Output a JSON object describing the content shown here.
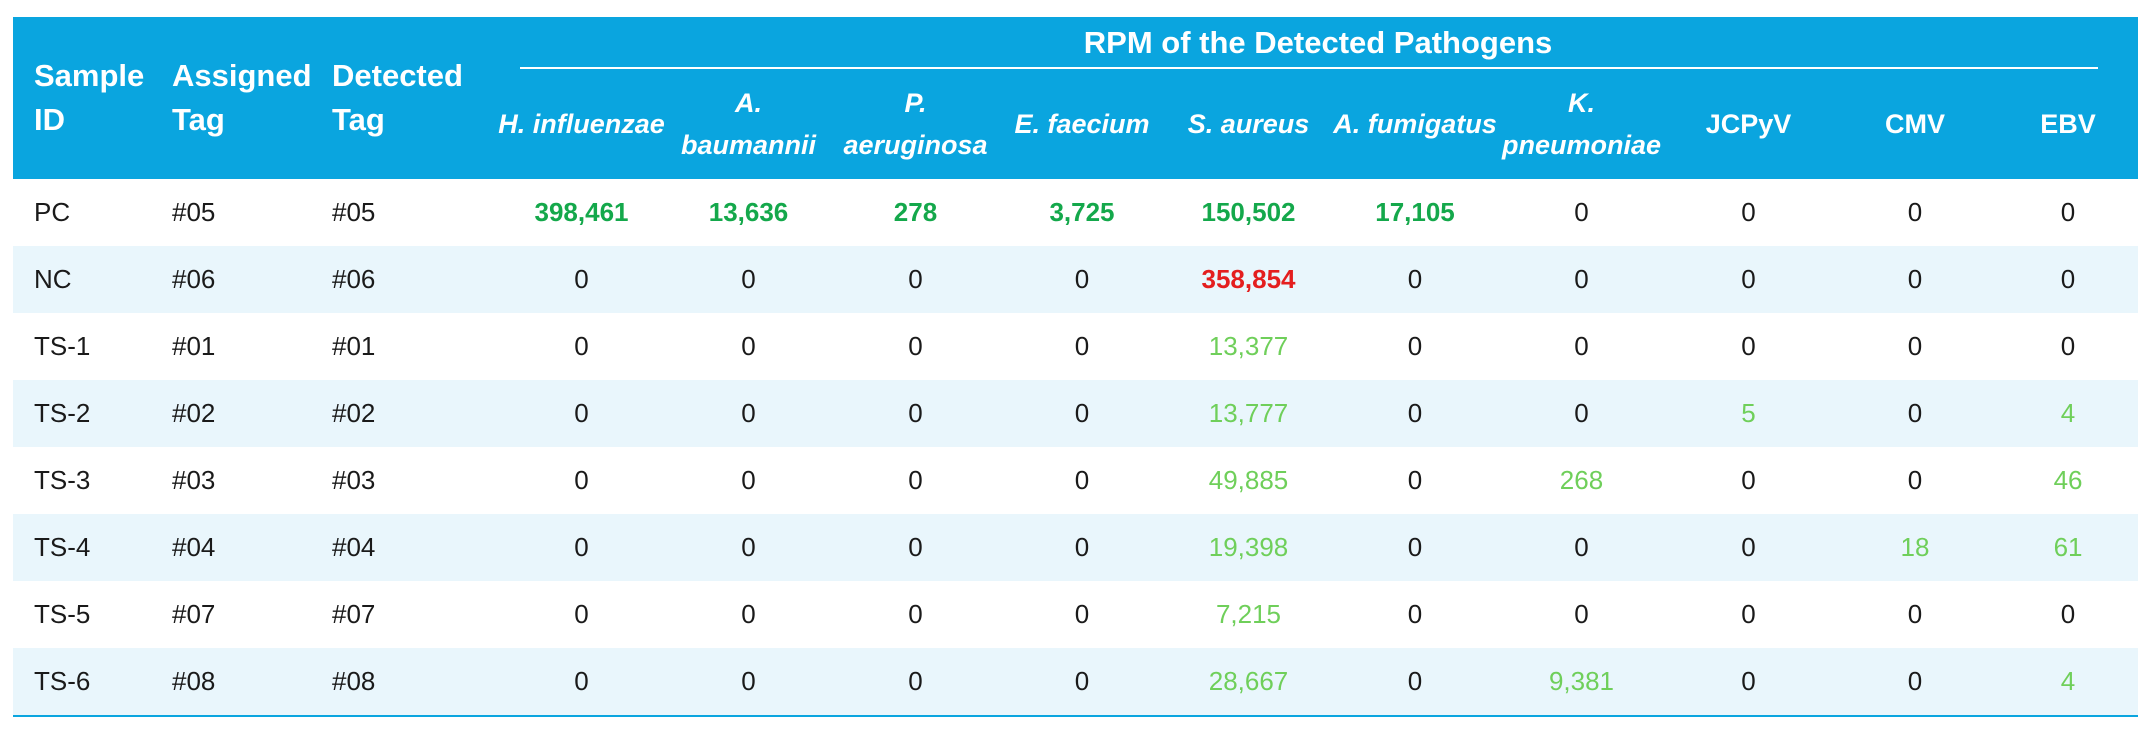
{
  "header": {
    "sample_id": "Sample ID",
    "assigned_tag": "Assigned Tag",
    "detected_tag": "Detected Tag",
    "group_title": "RPM of the Detected Pathogens",
    "pathogens": [
      {
        "label": "H. influenzae",
        "italic": true
      },
      {
        "label": "A. baumannii",
        "italic": true
      },
      {
        "label": "P. aeruginosa",
        "italic": true
      },
      {
        "label": "E. faecium",
        "italic": true
      },
      {
        "label": "S. aureus",
        "italic": true
      },
      {
        "label": "A. fumigatus",
        "italic": true
      },
      {
        "label": "K. pneumoniae",
        "italic": true
      },
      {
        "label": "JCPyV",
        "italic": false
      },
      {
        "label": "CMV",
        "italic": false
      },
      {
        "label": "EBV",
        "italic": false
      }
    ]
  },
  "colors": {
    "header_bg": "#0aa5df",
    "alt_row_bg": "#e9f6fc",
    "positive_control": "#14a84b",
    "contamination": "#e41e1e",
    "detected": "#6fcf5a"
  },
  "rows": [
    {
      "sample": "PC",
      "assigned": "#05",
      "detected": "#05",
      "values": [
        "398,461",
        "13,636",
        "278",
        "3,725",
        "150,502",
        "17,105",
        "0",
        "0",
        "0",
        "0"
      ],
      "styles": [
        "pos",
        "pos",
        "pos",
        "pos",
        "pos",
        "pos",
        "plain",
        "plain",
        "plain",
        "plain"
      ]
    },
    {
      "sample": "NC",
      "assigned": "#06",
      "detected": "#06",
      "values": [
        "0",
        "0",
        "0",
        "0",
        "358,854",
        "0",
        "0",
        "0",
        "0",
        "0"
      ],
      "styles": [
        "plain",
        "plain",
        "plain",
        "plain",
        "neg",
        "plain",
        "plain",
        "plain",
        "plain",
        "plain"
      ]
    },
    {
      "sample": "TS-1",
      "assigned": "#01",
      "detected": "#01",
      "values": [
        "0",
        "0",
        "0",
        "0",
        "13,377",
        "0",
        "0",
        "0",
        "0",
        "0"
      ],
      "styles": [
        "plain",
        "plain",
        "plain",
        "plain",
        "light",
        "plain",
        "plain",
        "plain",
        "plain",
        "plain"
      ]
    },
    {
      "sample": "TS-2",
      "assigned": "#02",
      "detected": "#02",
      "values": [
        "0",
        "0",
        "0",
        "0",
        "13,777",
        "0",
        "0",
        "5",
        "0",
        "4"
      ],
      "styles": [
        "plain",
        "plain",
        "plain",
        "plain",
        "light",
        "plain",
        "plain",
        "light",
        "plain",
        "light"
      ]
    },
    {
      "sample": "TS-3",
      "assigned": "#03",
      "detected": "#03",
      "values": [
        "0",
        "0",
        "0",
        "0",
        "49,885",
        "0",
        "268",
        "0",
        "0",
        "46"
      ],
      "styles": [
        "plain",
        "plain",
        "plain",
        "plain",
        "light",
        "plain",
        "light",
        "plain",
        "plain",
        "light"
      ]
    },
    {
      "sample": "TS-4",
      "assigned": "#04",
      "detected": "#04",
      "values": [
        "0",
        "0",
        "0",
        "0",
        "19,398",
        "0",
        "0",
        "0",
        "18",
        "61"
      ],
      "styles": [
        "plain",
        "plain",
        "plain",
        "plain",
        "light",
        "plain",
        "plain",
        "plain",
        "light",
        "light"
      ]
    },
    {
      "sample": "TS-5",
      "assigned": "#07",
      "detected": "#07",
      "values": [
        "0",
        "0",
        "0",
        "0",
        "7,215",
        "0",
        "0",
        "0",
        "0",
        "0"
      ],
      "styles": [
        "plain",
        "plain",
        "plain",
        "plain",
        "light",
        "plain",
        "plain",
        "plain",
        "plain",
        "plain"
      ]
    },
    {
      "sample": "TS-6",
      "assigned": "#08",
      "detected": "#08",
      "values": [
        "0",
        "0",
        "0",
        "0",
        "28,667",
        "0",
        "9,381",
        "0",
        "0",
        "4"
      ],
      "styles": [
        "plain",
        "plain",
        "plain",
        "plain",
        "light",
        "plain",
        "light",
        "plain",
        "plain",
        "light"
      ]
    }
  ]
}
